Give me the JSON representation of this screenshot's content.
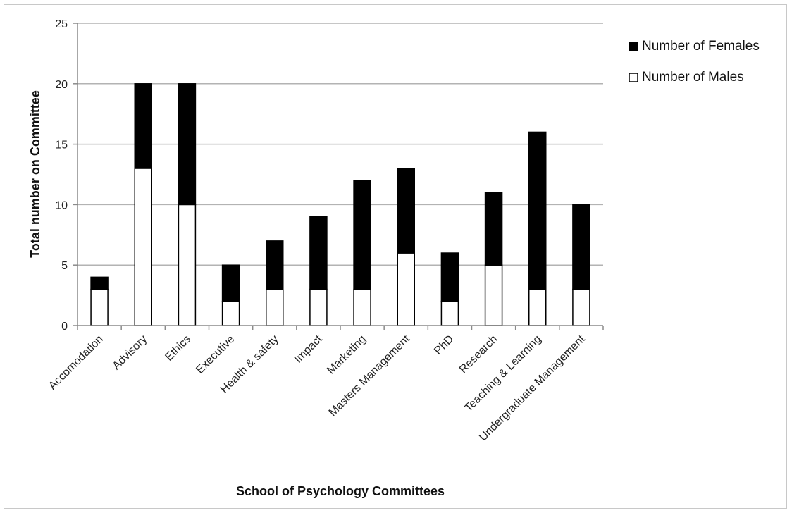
{
  "chart_data": {
    "type": "bar",
    "stacked": true,
    "categories": [
      "Accomodation",
      "Advisory",
      "Ethics",
      "Executive",
      "Health & safety",
      "Impact",
      "Marketing",
      "Masters Management",
      "PhD",
      "Research",
      "Teaching & Learning",
      "Undergraduate Management"
    ],
    "series": [
      {
        "name": "Number of Males",
        "values": [
          3,
          13,
          10,
          2,
          3,
          3,
          3,
          6,
          2,
          5,
          3,
          3
        ],
        "color": "#ffffff"
      },
      {
        "name": "Number of Females",
        "values": [
          1,
          7,
          10,
          3,
          4,
          6,
          9,
          7,
          4,
          6,
          13,
          7
        ],
        "color": "#000000"
      }
    ],
    "legend_order": [
      "Number of Females",
      "Number of Males"
    ],
    "xlabel": "School of Psychology Committees",
    "ylabel": "Total number on Committee",
    "ylim": [
      0,
      25
    ],
    "yticks": [
      0,
      5,
      10,
      15,
      20,
      25
    ],
    "grid": true,
    "legend_position": "top-right"
  }
}
